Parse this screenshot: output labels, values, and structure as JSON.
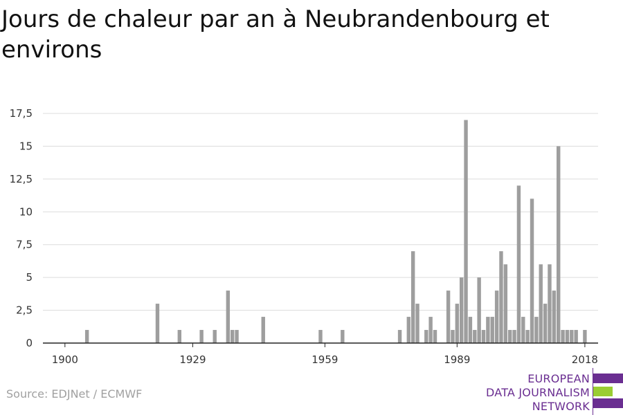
{
  "header": {
    "title": "Jours de chaleur par an à Neubrandenbourg et environs"
  },
  "footer": {
    "source": "Source: EDJNet / ECMWF"
  },
  "logo": {
    "line1": "EUROPEAN",
    "line2": "DATA JOURNALISM",
    "line3": "NETWORK",
    "colors": {
      "purple": "#6a2e91",
      "green": "#9acd32"
    }
  },
  "chart_data": {
    "type": "bar",
    "title": "Jours de chaleur par an à Neubrandenbourg et environs",
    "xlabel": "",
    "ylabel": "",
    "x_range": [
      1895,
      2021
    ],
    "ylim": [
      0,
      17.5
    ],
    "y_ticks": [
      0,
      2.5,
      5,
      7.5,
      10,
      12.5,
      15,
      17.5
    ],
    "y_tick_labels": [
      "0",
      "2,5",
      "5",
      "7,5",
      "10",
      "12,5",
      "15",
      "17,5"
    ],
    "x_ticks": [
      1900,
      1929,
      1959,
      1989,
      2018
    ],
    "x_tick_labels": [
      "1900",
      "1929",
      "1959",
      "1989",
      "2018"
    ],
    "grid": true,
    "bar_color": "#9e9e9e",
    "x": [
      1905,
      1921,
      1926,
      1931,
      1934,
      1937,
      1938,
      1939,
      1945,
      1958,
      1963,
      1976,
      1978,
      1979,
      1980,
      1982,
      1983,
      1984,
      1987,
      1988,
      1989,
      1990,
      1991,
      1992,
      1993,
      1994,
      1995,
      1996,
      1997,
      1998,
      1999,
      2000,
      2001,
      2002,
      2003,
      2004,
      2005,
      2006,
      2007,
      2008,
      2009,
      2010,
      2011,
      2012,
      2013,
      2014,
      2015,
      2016,
      2018
    ],
    "values": [
      1,
      3,
      1,
      1,
      1,
      4,
      1,
      1,
      2,
      1,
      1,
      1,
      2,
      7,
      3,
      1,
      2,
      1,
      4,
      1,
      3,
      5,
      17,
      2,
      1,
      5,
      1,
      2,
      2,
      4,
      7,
      6,
      1,
      1,
      12,
      2,
      1,
      11,
      2,
      6,
      3,
      6,
      4,
      15,
      1,
      1,
      1,
      1,
      1
    ]
  }
}
